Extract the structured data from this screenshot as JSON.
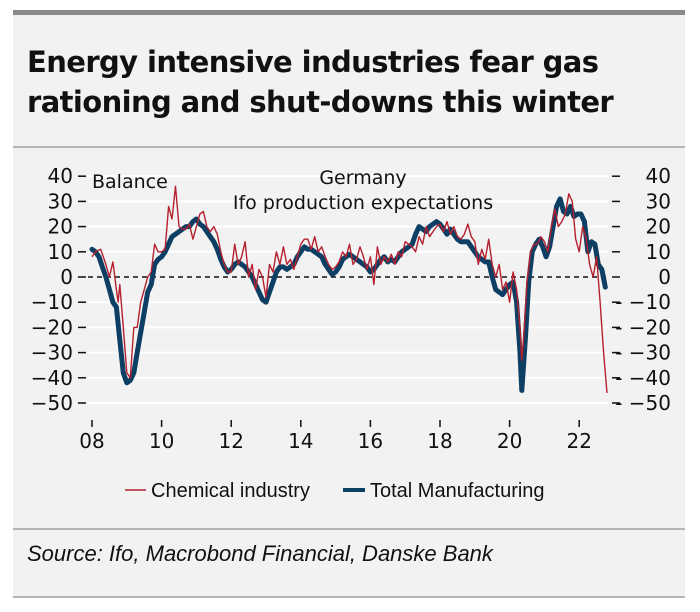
{
  "title_lines": [
    "Energy intensive industries fear gas",
    "rationing and shut-downs this winter"
  ],
  "source": "Source: Ifo, Macrobond Financial, Danske Bank",
  "colors": {
    "chemical": "#b5202e",
    "manufacturing": "#0d3e63",
    "background": "#f2f2f2",
    "grid": "#ffffff",
    "frame": "#8a8a8a"
  },
  "chart_data": {
    "type": "line",
    "title": "Germany Ifo production expectations",
    "annotation_title_lines": [
      "Germany",
      "Ifo production expectations"
    ],
    "ylabel": "Balance",
    "xlabel": "",
    "xlim": [
      2008,
      2023.1
    ],
    "ylim": [
      -50,
      40
    ],
    "yticks": [
      40,
      30,
      20,
      10,
      0,
      -10,
      -20,
      -30,
      -40,
      -50
    ],
    "yticks_right": [
      40,
      30,
      20,
      10,
      0,
      -10,
      -20,
      -30,
      -40,
      -50
    ],
    "xticks": [
      {
        "value": 2008,
        "label": "08"
      },
      {
        "value": 2010,
        "label": "10"
      },
      {
        "value": 2012,
        "label": "12"
      },
      {
        "value": 2014,
        "label": "14"
      },
      {
        "value": 2016,
        "label": "16"
      },
      {
        "value": 2018,
        "label": "18"
      },
      {
        "value": 2020,
        "label": "20"
      },
      {
        "value": 2022,
        "label": "22"
      }
    ],
    "grid": true,
    "zero_line": "dashed",
    "legend_position": "bottom",
    "series": [
      {
        "name": "Chemical industry",
        "style": "thin",
        "points": [
          [
            2008.0,
            8
          ],
          [
            2008.1,
            10
          ],
          [
            2008.25,
            11
          ],
          [
            2008.4,
            5
          ],
          [
            2008.5,
            0
          ],
          [
            2008.6,
            6
          ],
          [
            2008.7,
            -5
          ],
          [
            2008.75,
            -10
          ],
          [
            2008.8,
            -3
          ],
          [
            2008.9,
            -20
          ],
          [
            2009.0,
            -38
          ],
          [
            2009.1,
            -40
          ],
          [
            2009.2,
            -20
          ],
          [
            2009.3,
            -20
          ],
          [
            2009.4,
            -10
          ],
          [
            2009.5,
            -5
          ],
          [
            2009.6,
            0
          ],
          [
            2009.7,
            2
          ],
          [
            2009.8,
            13
          ],
          [
            2009.9,
            10
          ],
          [
            2010.0,
            10
          ],
          [
            2010.1,
            11
          ],
          [
            2010.2,
            28
          ],
          [
            2010.3,
            23
          ],
          [
            2010.4,
            36
          ],
          [
            2010.5,
            20
          ],
          [
            2010.6,
            19
          ],
          [
            2010.7,
            19
          ],
          [
            2010.8,
            21
          ],
          [
            2010.9,
            15
          ],
          [
            2011.0,
            20
          ],
          [
            2011.1,
            25
          ],
          [
            2011.2,
            26
          ],
          [
            2011.3,
            20
          ],
          [
            2011.4,
            18
          ],
          [
            2011.5,
            20
          ],
          [
            2011.6,
            17
          ],
          [
            2011.7,
            10
          ],
          [
            2011.8,
            5
          ],
          [
            2011.9,
            2
          ],
          [
            2012.0,
            2
          ],
          [
            2012.1,
            13
          ],
          [
            2012.2,
            5
          ],
          [
            2012.3,
            8
          ],
          [
            2012.4,
            14
          ],
          [
            2012.5,
            0
          ],
          [
            2012.6,
            5
          ],
          [
            2012.7,
            -5
          ],
          [
            2012.8,
            3
          ],
          [
            2012.9,
            0
          ],
          [
            2013.0,
            -8
          ],
          [
            2013.1,
            5
          ],
          [
            2013.2,
            2
          ],
          [
            2013.3,
            10
          ],
          [
            2013.4,
            5
          ],
          [
            2013.5,
            12
          ],
          [
            2013.6,
            5
          ],
          [
            2013.7,
            7
          ],
          [
            2013.8,
            3
          ],
          [
            2013.9,
            8
          ],
          [
            2014.0,
            13
          ],
          [
            2014.1,
            15
          ],
          [
            2014.2,
            15
          ],
          [
            2014.3,
            11
          ],
          [
            2014.4,
            16
          ],
          [
            2014.5,
            10
          ],
          [
            2014.6,
            12
          ],
          [
            2014.7,
            8
          ],
          [
            2014.8,
            5
          ],
          [
            2014.9,
            3
          ],
          [
            2015.0,
            4
          ],
          [
            2015.1,
            6
          ],
          [
            2015.2,
            10
          ],
          [
            2015.3,
            8
          ],
          [
            2015.4,
            13
          ],
          [
            2015.5,
            5
          ],
          [
            2015.6,
            7
          ],
          [
            2015.7,
            12
          ],
          [
            2015.8,
            8
          ],
          [
            2015.9,
            3
          ],
          [
            2016.0,
            8
          ],
          [
            2016.1,
            -3
          ],
          [
            2016.2,
            12
          ],
          [
            2016.3,
            5
          ],
          [
            2016.4,
            8
          ],
          [
            2016.5,
            6
          ],
          [
            2016.6,
            9
          ],
          [
            2016.7,
            5
          ],
          [
            2016.8,
            10
          ],
          [
            2016.9,
            8
          ],
          [
            2017.0,
            14
          ],
          [
            2017.1,
            13
          ],
          [
            2017.2,
            12
          ],
          [
            2017.3,
            10
          ],
          [
            2017.4,
            16
          ],
          [
            2017.5,
            13
          ],
          [
            2017.6,
            20
          ],
          [
            2017.7,
            16
          ],
          [
            2017.8,
            18
          ],
          [
            2017.9,
            20
          ],
          [
            2018.0,
            21
          ],
          [
            2018.1,
            18
          ],
          [
            2018.2,
            22
          ],
          [
            2018.3,
            17
          ],
          [
            2018.4,
            20
          ],
          [
            2018.5,
            16
          ],
          [
            2018.6,
            15
          ],
          [
            2018.7,
            17
          ],
          [
            2018.8,
            21
          ],
          [
            2018.9,
            16
          ],
          [
            2019.0,
            14
          ],
          [
            2019.1,
            5
          ],
          [
            2019.2,
            11
          ],
          [
            2019.3,
            7
          ],
          [
            2019.4,
            15
          ],
          [
            2019.5,
            5
          ],
          [
            2019.6,
            0
          ],
          [
            2019.7,
            5
          ],
          [
            2019.8,
            -5
          ],
          [
            2019.9,
            -2
          ],
          [
            2020.0,
            -10
          ],
          [
            2020.1,
            2
          ],
          [
            2020.2,
            -5
          ],
          [
            2020.3,
            -20
          ],
          [
            2020.35,
            -33
          ],
          [
            2020.4,
            -25
          ],
          [
            2020.5,
            -2
          ],
          [
            2020.6,
            10
          ],
          [
            2020.7,
            13
          ],
          [
            2020.8,
            13
          ],
          [
            2020.9,
            16
          ],
          [
            2021.0,
            14
          ],
          [
            2021.1,
            10
          ],
          [
            2021.2,
            20
          ],
          [
            2021.3,
            27
          ],
          [
            2021.4,
            20
          ],
          [
            2021.5,
            22
          ],
          [
            2021.6,
            25
          ],
          [
            2021.7,
            33
          ],
          [
            2021.8,
            30
          ],
          [
            2021.9,
            15
          ],
          [
            2022.0,
            10
          ],
          [
            2022.1,
            20
          ],
          [
            2022.2,
            15
          ],
          [
            2022.3,
            5
          ],
          [
            2022.4,
            0
          ],
          [
            2022.5,
            8
          ],
          [
            2022.6,
            -10
          ],
          [
            2022.7,
            -30
          ],
          [
            2022.8,
            -46
          ]
        ]
      },
      {
        "name": "Total Manufacturing",
        "style": "thick",
        "points": [
          [
            2008.0,
            11
          ],
          [
            2008.1,
            10
          ],
          [
            2008.2,
            8
          ],
          [
            2008.3,
            4
          ],
          [
            2008.4,
            0
          ],
          [
            2008.5,
            -5
          ],
          [
            2008.6,
            -10
          ],
          [
            2008.7,
            -12
          ],
          [
            2008.8,
            -25
          ],
          [
            2008.9,
            -38
          ],
          [
            2009.0,
            -42
          ],
          [
            2009.1,
            -41
          ],
          [
            2009.2,
            -38
          ],
          [
            2009.3,
            -30
          ],
          [
            2009.4,
            -22
          ],
          [
            2009.5,
            -14
          ],
          [
            2009.6,
            -6
          ],
          [
            2009.7,
            -3
          ],
          [
            2009.8,
            5
          ],
          [
            2009.9,
            7
          ],
          [
            2010.0,
            8
          ],
          [
            2010.1,
            10
          ],
          [
            2010.2,
            13
          ],
          [
            2010.3,
            16
          ],
          [
            2010.4,
            17
          ],
          [
            2010.5,
            18
          ],
          [
            2010.6,
            19
          ],
          [
            2010.7,
            20
          ],
          [
            2010.8,
            20
          ],
          [
            2010.9,
            22
          ],
          [
            2011.0,
            23
          ],
          [
            2011.1,
            21
          ],
          [
            2011.2,
            20
          ],
          [
            2011.3,
            18
          ],
          [
            2011.4,
            16
          ],
          [
            2011.5,
            14
          ],
          [
            2011.6,
            11
          ],
          [
            2011.7,
            7
          ],
          [
            2011.8,
            4
          ],
          [
            2011.9,
            2
          ],
          [
            2012.0,
            3
          ],
          [
            2012.1,
            5
          ],
          [
            2012.2,
            6
          ],
          [
            2012.3,
            5
          ],
          [
            2012.4,
            4
          ],
          [
            2012.5,
            2
          ],
          [
            2012.6,
            0
          ],
          [
            2012.7,
            -3
          ],
          [
            2012.8,
            -6
          ],
          [
            2012.9,
            -9
          ],
          [
            2013.0,
            -10
          ],
          [
            2013.1,
            -6
          ],
          [
            2013.2,
            -2
          ],
          [
            2013.3,
            2
          ],
          [
            2013.4,
            4
          ],
          [
            2013.5,
            4
          ],
          [
            2013.6,
            3
          ],
          [
            2013.7,
            4
          ],
          [
            2013.8,
            5
          ],
          [
            2013.9,
            8
          ],
          [
            2014.0,
            10
          ],
          [
            2014.1,
            12
          ],
          [
            2014.2,
            11
          ],
          [
            2014.3,
            11
          ],
          [
            2014.4,
            10
          ],
          [
            2014.5,
            9
          ],
          [
            2014.6,
            8
          ],
          [
            2014.7,
            5
          ],
          [
            2014.8,
            3
          ],
          [
            2014.9,
            1
          ],
          [
            2015.0,
            2
          ],
          [
            2015.1,
            4
          ],
          [
            2015.2,
            7
          ],
          [
            2015.3,
            8
          ],
          [
            2015.4,
            9
          ],
          [
            2015.5,
            8
          ],
          [
            2015.6,
            7
          ],
          [
            2015.7,
            6
          ],
          [
            2015.8,
            5
          ],
          [
            2015.9,
            4
          ],
          [
            2016.0,
            2
          ],
          [
            2016.1,
            3
          ],
          [
            2016.2,
            5
          ],
          [
            2016.3,
            7
          ],
          [
            2016.4,
            8
          ],
          [
            2016.5,
            6
          ],
          [
            2016.6,
            7
          ],
          [
            2016.7,
            6
          ],
          [
            2016.8,
            8
          ],
          [
            2016.9,
            10
          ],
          [
            2017.0,
            11
          ],
          [
            2017.1,
            12
          ],
          [
            2017.2,
            13
          ],
          [
            2017.3,
            17
          ],
          [
            2017.4,
            20
          ],
          [
            2017.5,
            19
          ],
          [
            2017.6,
            18
          ],
          [
            2017.7,
            20
          ],
          [
            2017.8,
            21
          ],
          [
            2017.9,
            22
          ],
          [
            2018.0,
            21
          ],
          [
            2018.1,
            19
          ],
          [
            2018.2,
            17
          ],
          [
            2018.3,
            19
          ],
          [
            2018.4,
            17
          ],
          [
            2018.5,
            15
          ],
          [
            2018.6,
            14
          ],
          [
            2018.7,
            14
          ],
          [
            2018.8,
            14
          ],
          [
            2018.9,
            12
          ],
          [
            2019.0,
            10
          ],
          [
            2019.1,
            8
          ],
          [
            2019.2,
            7
          ],
          [
            2019.3,
            6
          ],
          [
            2019.4,
            6
          ],
          [
            2019.5,
            0
          ],
          [
            2019.6,
            -5
          ],
          [
            2019.7,
            -6
          ],
          [
            2019.8,
            -7
          ],
          [
            2019.9,
            -5
          ],
          [
            2020.0,
            -3
          ],
          [
            2020.1,
            -2
          ],
          [
            2020.2,
            -10
          ],
          [
            2020.3,
            -30
          ],
          [
            2020.35,
            -45
          ],
          [
            2020.45,
            -25
          ],
          [
            2020.55,
            -2
          ],
          [
            2020.65,
            10
          ],
          [
            2020.75,
            13
          ],
          [
            2020.85,
            15
          ],
          [
            2020.95,
            12
          ],
          [
            2021.05,
            8
          ],
          [
            2021.15,
            12
          ],
          [
            2021.25,
            20
          ],
          [
            2021.35,
            28
          ],
          [
            2021.45,
            31
          ],
          [
            2021.55,
            26
          ],
          [
            2021.65,
            25
          ],
          [
            2021.75,
            28
          ],
          [
            2021.85,
            24
          ],
          [
            2021.95,
            25
          ],
          [
            2022.05,
            25
          ],
          [
            2022.15,
            22
          ],
          [
            2022.25,
            10
          ],
          [
            2022.35,
            14
          ],
          [
            2022.45,
            13
          ],
          [
            2022.55,
            5
          ],
          [
            2022.65,
            3
          ],
          [
            2022.75,
            -4
          ]
        ]
      }
    ]
  }
}
